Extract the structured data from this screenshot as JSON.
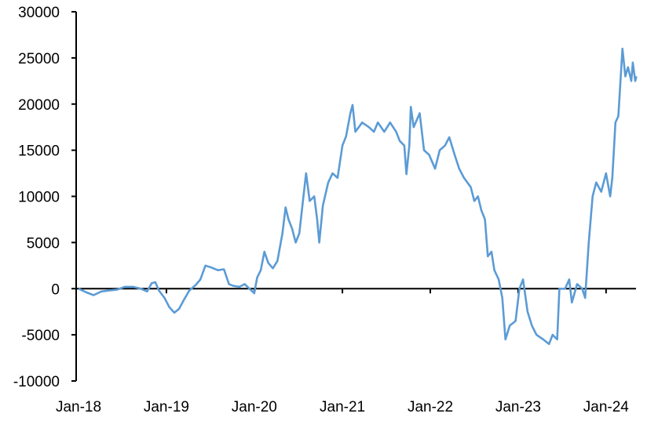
{
  "chart_data": {
    "type": "line",
    "title": "",
    "xlabel": "",
    "ylabel": "",
    "ylim": [
      -10000,
      30000
    ],
    "yticks": [
      -10000,
      -5000,
      0,
      5000,
      10000,
      15000,
      20000,
      25000,
      30000
    ],
    "ytick_labels": [
      "-10000",
      "-5000",
      "0",
      "5000",
      "10000",
      "15000",
      "20000",
      "25000",
      "30000"
    ],
    "xticks": [
      "2018-01-01",
      "2019-01-01",
      "2020-01-01",
      "2021-01-01",
      "2022-01-01",
      "2023-01-01",
      "2024-01-01"
    ],
    "xtick_labels": [
      "Jan-18",
      "Jan-19",
      "Jan-20",
      "Jan-21",
      "Jan-22",
      "Jan-23",
      "Jan-24"
    ],
    "grid": false,
    "line_color": "#5B9BD5",
    "series": [
      {
        "x": [
          "2018-01-01",
          "2018-02-03",
          "2018-03-05",
          "2018-04-06",
          "2018-05-08",
          "2018-06-11",
          "2018-07-13",
          "2018-08-15",
          "2018-09-17",
          "2018-10-13",
          "2018-11-01",
          "2018-11-16",
          "2018-12-01",
          "2018-12-24",
          "2019-01-13",
          "2019-02-03",
          "2019-02-22",
          "2019-03-15",
          "2019-04-06",
          "2019-05-03",
          "2019-05-22",
          "2019-06-12",
          "2019-07-06",
          "2019-08-03",
          "2019-08-28",
          "2019-09-18",
          "2019-10-06",
          "2019-11-01",
          "2019-11-22",
          "2019-12-12",
          "2020-01-01",
          "2020-01-13",
          "2020-01-28",
          "2020-02-12",
          "2020-02-28",
          "2020-03-18",
          "2020-04-06",
          "2020-04-27",
          "2020-05-10",
          "2020-05-22",
          "2020-06-06",
          "2020-06-21",
          "2020-07-06",
          "2020-07-21",
          "2020-08-03",
          "2020-08-18",
          "2020-09-06",
          "2020-09-18",
          "2020-09-27",
          "2020-10-12",
          "2020-11-03",
          "2020-11-21",
          "2020-12-12",
          "2021-01-01",
          "2021-01-16",
          "2021-02-03",
          "2021-02-12",
          "2021-02-24",
          "2021-03-24",
          "2021-04-21",
          "2021-05-12",
          "2021-05-28",
          "2021-06-24",
          "2021-07-18",
          "2021-08-12",
          "2021-08-27",
          "2021-09-15",
          "2021-09-24",
          "2021-10-06",
          "2021-10-12",
          "2021-10-24",
          "2021-11-18",
          "2021-12-06",
          "2021-12-27",
          "2022-01-21",
          "2022-02-09",
          "2022-03-03",
          "2022-03-21",
          "2022-04-12",
          "2022-05-01",
          "2022-05-21",
          "2022-06-18",
          "2022-07-03",
          "2022-07-18",
          "2022-08-01",
          "2022-08-16",
          "2022-08-28",
          "2022-09-12",
          "2022-09-24",
          "2022-10-12",
          "2022-10-27",
          "2022-11-09",
          "2022-11-27",
          "2022-12-21",
          "2023-01-06",
          "2023-01-21",
          "2023-02-09",
          "2023-02-27",
          "2023-03-18",
          "2023-04-15",
          "2023-05-09",
          "2023-05-24",
          "2023-06-12",
          "2023-06-21",
          "2023-07-15",
          "2023-08-01",
          "2023-08-12",
          "2023-09-03",
          "2023-09-24",
          "2023-10-06",
          "2023-10-21",
          "2023-11-06",
          "2023-11-21",
          "2023-12-12",
          "2024-01-01",
          "2024-01-18",
          "2024-01-27",
          "2024-02-09",
          "2024-02-21",
          "2024-03-09",
          "2024-03-21",
          "2024-04-01",
          "2024-04-15",
          "2024-04-21",
          "2024-05-01",
          "2024-05-06"
        ],
        "y": [
          0,
          -400,
          -700,
          -300,
          -200,
          -100,
          200,
          200,
          0,
          -300,
          600,
          700,
          -200,
          -1000,
          -2000,
          -2600,
          -2200,
          -1200,
          -200,
          400,
          1000,
          2500,
          2300,
          2000,
          2100,
          500,
          300,
          200,
          500,
          0,
          -500,
          1200,
          2000,
          4000,
          2800,
          2200,
          3000,
          6000,
          8800,
          7500,
          6500,
          5000,
          6000,
          9500,
          12500,
          9500,
          10000,
          7500,
          5000,
          9000,
          11500,
          12500,
          12000,
          15500,
          16500,
          19000,
          19900,
          17000,
          18000,
          17500,
          17000,
          18000,
          17000,
          18000,
          17000,
          16000,
          15500,
          12400,
          15500,
          19700,
          17500,
          19000,
          15000,
          14500,
          13000,
          15000,
          15500,
          16400,
          14500,
          13000,
          12000,
          11000,
          9500,
          10000,
          8500,
          7500,
          3500,
          4000,
          2000,
          1000,
          -1000,
          -5500,
          -4000,
          -3500,
          0,
          1000,
          -2500,
          -4000,
          -5000,
          -5500,
          -6000,
          -5000,
          -5500,
          0,
          0,
          1000,
          -1500,
          500,
          0,
          -1000,
          5000,
          10000,
          11500,
          10500,
          12500,
          10000,
          12000,
          18000,
          18700,
          26000,
          23000,
          24000,
          22500,
          24500,
          22500,
          23000
        ]
      }
    ]
  }
}
